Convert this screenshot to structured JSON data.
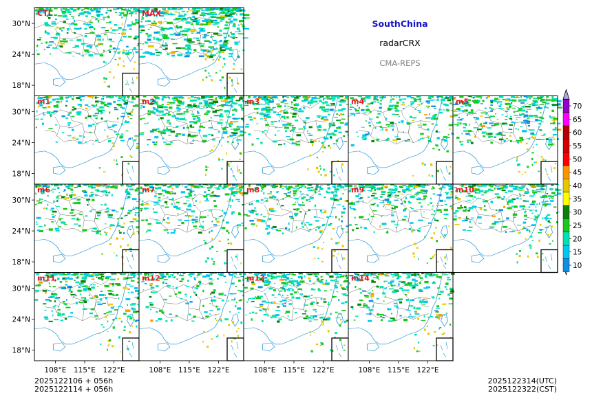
{
  "title": {
    "region": "SouthChina",
    "variable": "radarCRX",
    "system": "CMA-REPS",
    "region_color": "#1414c8",
    "system_color": "#808080"
  },
  "panels": [
    "CTL",
    "MAX",
    "m1",
    "m2",
    "m3",
    "m4",
    "m5",
    "m6",
    "m7",
    "m8",
    "m9",
    "m10",
    "m11",
    "m12",
    "m13",
    "m14"
  ],
  "panel_density": [
    0.55,
    1.0,
    0.4,
    0.75,
    0.65,
    0.45,
    0.7,
    0.5,
    0.5,
    0.45,
    0.55,
    0.6,
    0.6,
    0.35,
    0.55,
    0.55
  ],
  "axes": {
    "lat_ticks": [
      "30°N",
      "24°N",
      "18°N"
    ],
    "lon_ticks": [
      "108°E",
      "115°E",
      "122°E"
    ]
  },
  "colorbar": {
    "levels": [
      "10",
      "15",
      "20",
      "25",
      "30",
      "35",
      "40",
      "45",
      "50",
      "55",
      "60",
      "65",
      "70"
    ],
    "colors": [
      "#0f8fe6",
      "#00c8f0",
      "#00e1b4",
      "#19c819",
      "#0a820a",
      "#ffff00",
      "#e6c800",
      "#ff9600",
      "#ff0000",
      "#d20000",
      "#b40000",
      "#ff00ff",
      "#9400c8",
      "#b4a0e6"
    ]
  },
  "footer": {
    "init_utc": "2025122106  +  056h",
    "init_cst": "2025122114  +  056h",
    "valid_utc": "2025122314(UTC)",
    "valid_cst": "2025122322(CST)"
  }
}
